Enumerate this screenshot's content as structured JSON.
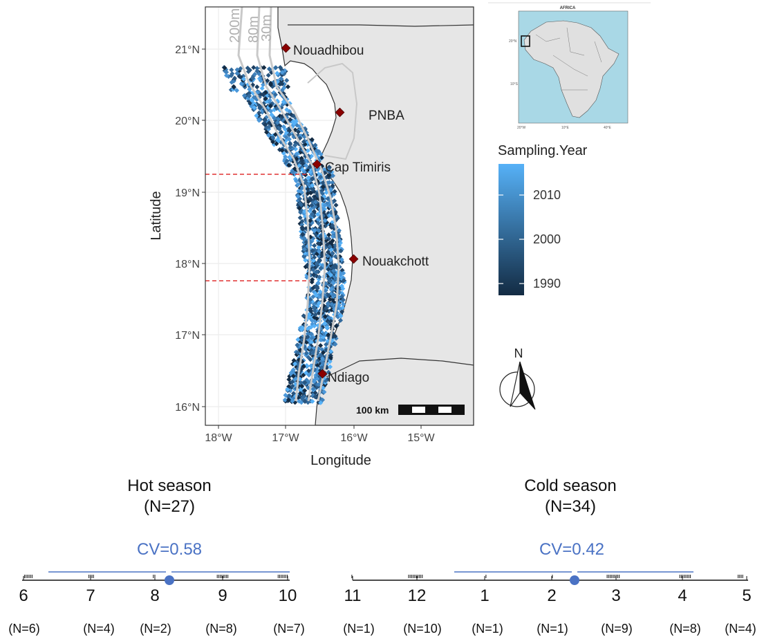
{
  "map": {
    "ylabel": "Latitude",
    "xlabel": "Longitude",
    "lat_ticks": [
      "21°N",
      "20°N",
      "19°N",
      "18°N",
      "17°N",
      "16°N"
    ],
    "lon_ticks": [
      "18°W",
      "17°W",
      "16°W",
      "15°W"
    ],
    "isobaths": [
      "200m",
      "80m",
      "30m"
    ],
    "places": [
      "Nouadhibou",
      "PNBA",
      "Cap Timiris",
      "Nouakchott",
      "Ndiago"
    ],
    "scale_label": "100 km",
    "colors": {
      "land": "#e6e6e6",
      "sea": "#ffffff",
      "place_marker": "#8b0000",
      "boundary_dash": "#e03030"
    }
  },
  "inset": {
    "title": "AFRICA",
    "sea_color": "#a9d8e6",
    "land_color": "#e0e0e0"
  },
  "legend": {
    "title": "Sampling.Year",
    "labels": [
      "2010",
      "2000",
      "1990"
    ],
    "gradient": [
      "#56b1f7",
      "#132b43"
    ]
  },
  "north_label": "N",
  "hot": {
    "title": "Hot season",
    "n": "(N=27)",
    "cv": "CV=0.58",
    "months": [
      "6",
      "7",
      "8",
      "9",
      "10"
    ],
    "counts": [
      "(N=6)",
      "(N=4)",
      "(N=2)",
      "(N=8)",
      "(N=7)"
    ]
  },
  "cold": {
    "title": "Cold season",
    "n": "(N=34)",
    "cv": "CV=0.42",
    "months": [
      "11",
      "12",
      "1",
      "2",
      "3",
      "4",
      "5"
    ],
    "counts": [
      "(N=1)",
      "(N=10)",
      "(N=1)",
      "(N=1)",
      "(N=9)",
      "(N=8)",
      "(N=4)"
    ]
  }
}
